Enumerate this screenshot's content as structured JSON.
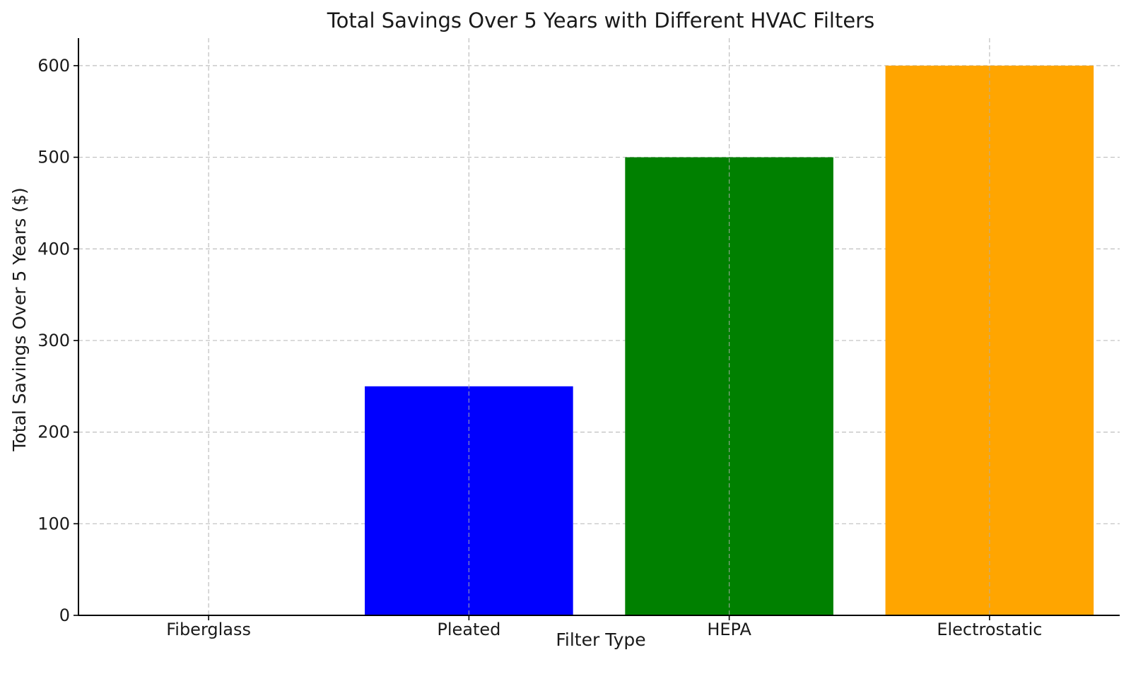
{
  "chart_data": {
    "type": "bar",
    "title": "Total Savings Over 5 Years with Different HVAC Filters",
    "xlabel": "Filter Type",
    "ylabel": "Total Savings Over 5 Years ($)",
    "categories": [
      "Fiberglass",
      "Pleated",
      "HEPA",
      "Electrostatic"
    ],
    "values": [
      0,
      250,
      500,
      600
    ],
    "colors": [
      "#1f77b4",
      "#0000ff",
      "#008000",
      "#ffa500"
    ],
    "ylim": [
      0,
      630
    ],
    "yticks": [
      0,
      100,
      200,
      300,
      400,
      500,
      600
    ],
    "grid": true,
    "legend": "none"
  }
}
